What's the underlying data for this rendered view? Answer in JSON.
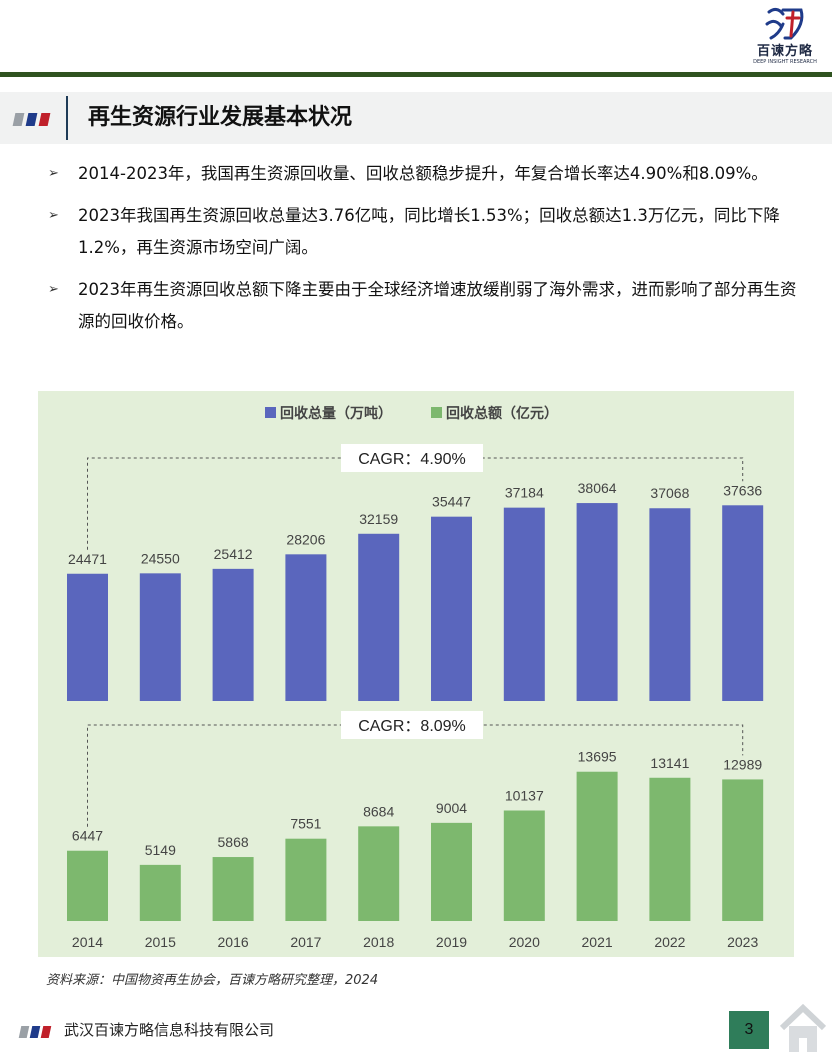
{
  "brand": {
    "name": "百谏方略",
    "sub": "DEEP INSIGHT RESEARCH"
  },
  "header": {
    "title": "再生资源行业发展基本状况"
  },
  "bullets": [
    "2014-2023年，我国再生资源回收量、回收总额稳步提升，年复合增长率达4.90%和8.09%。",
    "2023年我国再生资源回收总量达3.76亿吨，同比增长1.53%；回收总额达1.3万亿元，同比下降1.2%，再生资源市场空间广阔。",
    "2023年再生资源回收总额下降主要由于全球经济增速放缓削弱了海外需求，进而影响了部分再生资源的回收价格。"
  ],
  "chart_data": {
    "type": "bar",
    "categories": [
      "2014",
      "2015",
      "2016",
      "2017",
      "2018",
      "2019",
      "2020",
      "2021",
      "2022",
      "2023"
    ],
    "series": [
      {
        "name": "回收总量（万吨）",
        "values": [
          24471,
          24550,
          25412,
          28206,
          32159,
          35447,
          37184,
          38064,
          37068,
          37636
        ],
        "color": "#5a66bd",
        "cagr": "CAGR：4.90%"
      },
      {
        "name": "回收总额（亿元）",
        "values": [
          6447,
          5149,
          5868,
          7551,
          8684,
          9004,
          10137,
          13695,
          13141,
          12989
        ],
        "color": "#7db86e",
        "cagr": "CAGR：8.09%"
      }
    ],
    "legend_position": "top-center",
    "background": "#e3efd9",
    "grid": false
  },
  "source": "资料来源：中国物资再生协会，百谏方略研究整理，2024",
  "footer": {
    "company": "武汉百谏方略信息科技有限公司",
    "page": "3"
  },
  "colors": {
    "mark_gray": "#9aa0a6",
    "mark_navy": "#1f3b8a",
    "mark_red": "#c0202a",
    "top_line": "#2f5320",
    "page_box": "#2f7d5a"
  },
  "icons": [
    "logo-emblem",
    "arrow-right-icon",
    "home-icon"
  ]
}
